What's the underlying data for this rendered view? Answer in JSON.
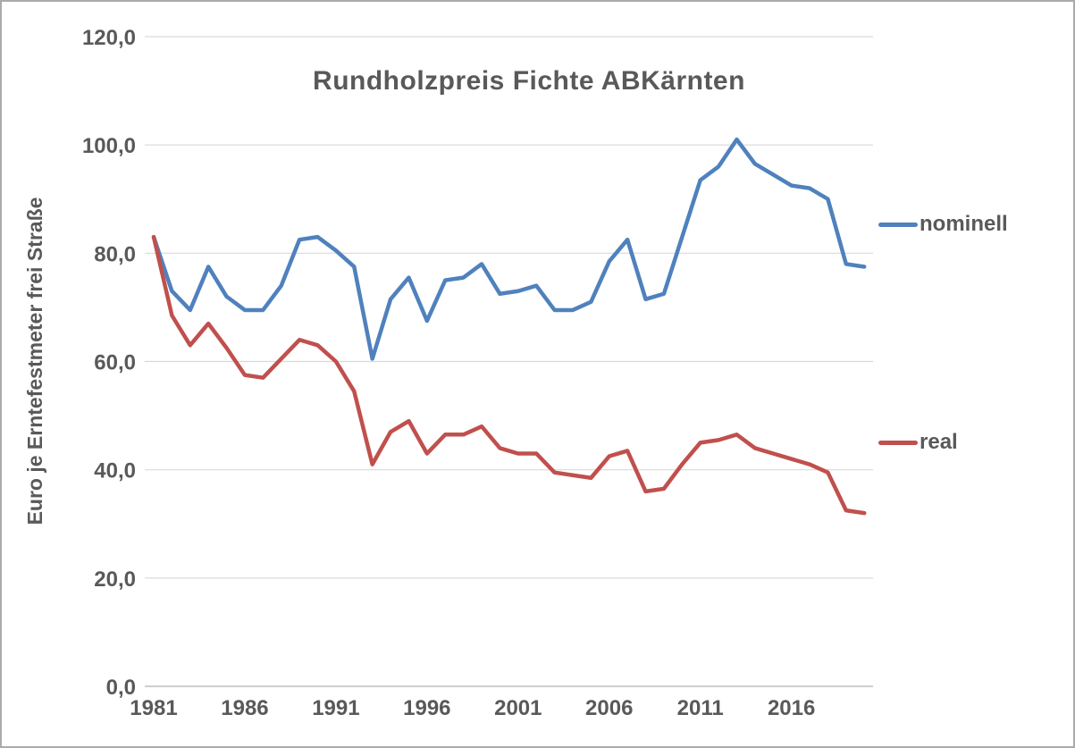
{
  "colors": {
    "gridline": "#D9D9D9",
    "axis_line": "#BFBFBF",
    "text": "#595959",
    "border": "#ABABAB"
  },
  "chart_data": {
    "type": "line",
    "title": "Rundholzpreis Fichte ABKärnten",
    "ylabel": "Euro je Erntefestmeter frei Straße",
    "xlabel": "",
    "ylim": [
      0,
      120
    ],
    "grid": true,
    "legend_position": "right",
    "x": [
      1981,
      1982,
      1983,
      1984,
      1985,
      1986,
      1987,
      1988,
      1989,
      1990,
      1991,
      1992,
      1993,
      1994,
      1995,
      1996,
      1997,
      1998,
      1999,
      2000,
      2001,
      2002,
      2003,
      2004,
      2005,
      2006,
      2007,
      2008,
      2009,
      2010,
      2011,
      2012,
      2013,
      2014,
      2015,
      2016,
      2017,
      2018,
      2019,
      2020
    ],
    "x_ticks": [
      {
        "value": 1981,
        "label": "1981"
      },
      {
        "value": 1986,
        "label": "1986"
      },
      {
        "value": 1991,
        "label": "1991"
      },
      {
        "value": 1996,
        "label": "1996"
      },
      {
        "value": 2001,
        "label": "2001"
      },
      {
        "value": 2006,
        "label": "2006"
      },
      {
        "value": 2011,
        "label": "2011"
      },
      {
        "value": 2016,
        "label": "2016"
      }
    ],
    "y_ticks": [
      {
        "value": 0,
        "label": "0,0"
      },
      {
        "value": 20,
        "label": "20,0"
      },
      {
        "value": 40,
        "label": "40,0"
      },
      {
        "value": 60,
        "label": "60,0"
      },
      {
        "value": 80,
        "label": "80,0"
      },
      {
        "value": 100,
        "label": "100,0"
      },
      {
        "value": 120,
        "label": "120,0"
      }
    ],
    "series": [
      {
        "name": "nominell",
        "color": "#4F81BD",
        "values": [
          83,
          73,
          69.5,
          77.5,
          72,
          69.5,
          69.5,
          74,
          82.5,
          83,
          80.5,
          77.5,
          60.5,
          71.5,
          75.5,
          67.5,
          75,
          75.5,
          78,
          72.5,
          73,
          74,
          69.5,
          69.5,
          71,
          78.5,
          82.5,
          71.5,
          72.5,
          83,
          93.5,
          96,
          101,
          96.5,
          94.5,
          92.5,
          92,
          90,
          78,
          77.5
        ]
      },
      {
        "name": "real",
        "color": "#C0504D",
        "values": [
          83,
          68.5,
          63,
          67,
          62.5,
          57.5,
          57,
          60.5,
          64,
          63,
          60,
          54.5,
          41,
          47,
          49,
          43,
          46.5,
          46.5,
          48,
          44,
          43,
          43,
          39.5,
          39,
          38.5,
          42.5,
          43.5,
          36,
          36.5,
          41,
          45,
          45.5,
          46.5,
          44,
          43,
          42,
          41,
          39.5,
          32.5,
          32
        ]
      }
    ]
  }
}
